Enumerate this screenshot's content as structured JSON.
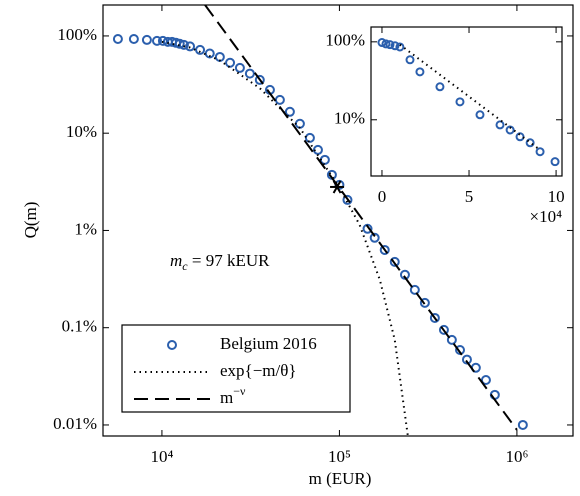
{
  "chart_data": [
    {
      "type": "scatter",
      "xlabel": "m (EUR)",
      "ylabel": "Q(m)",
      "xscale": "log",
      "yscale": "log",
      "xlim": [
        4656,
        2070000
      ],
      "ylim": [
        0.0077,
        208
      ],
      "xticks": [
        {
          "value": 10000,
          "label": "10⁴"
        },
        {
          "value": 100000,
          "label": "10⁵"
        },
        {
          "value": 1000000,
          "label": "10⁶"
        }
      ],
      "yticks": [
        {
          "value": 0.01,
          "label": "0.01%"
        },
        {
          "value": 0.1,
          "label": "0.1%"
        },
        {
          "value": 1,
          "label": "1%"
        },
        {
          "value": 10,
          "label": "10%"
        },
        {
          "value": 100,
          "label": "100%"
        }
      ],
      "legend": "lower left",
      "series": [
        {
          "name": "Belgium 2016",
          "style": "markers",
          "color": "#2b5fad",
          "x": [
            5650,
            6950,
            8230,
            9380,
            10130,
            10800,
            11400,
            12000,
            12600,
            13300,
            14400,
            16400,
            18600,
            21200,
            24200,
            27500,
            31300,
            35600,
            40600,
            46200,
            52600,
            59900,
            68200,
            75700,
            82800,
            90700,
            100000,
            111000,
            144000,
            158000,
            180000,
            205000,
            234000,
            266000,
            303000,
            345000,
            388000,
            430000,
            478000,
            523000,
            587000,
            669000,
            751000,
            1080000
          ],
          "values": [
            93,
            93,
            91,
            89,
            89,
            87,
            87,
            85,
            83,
            81,
            78,
            71.8,
            66,
            60.8,
            53,
            46.9,
            41,
            35.3,
            27.9,
            22.0,
            16.6,
            12.5,
            8.95,
            6.73,
            5.32,
            3.73,
            2.94,
            2.06,
            1.04,
            0.84,
            0.63,
            0.475,
            0.35,
            0.245,
            0.18,
            0.126,
            0.095,
            0.075,
            0.059,
            0.047,
            0.0387,
            0.029,
            0.0204,
            0.01
          ]
        },
        {
          "name": "exp{−m/θ}",
          "style": "line",
          "dash": "dotted",
          "color": "#000000",
          "x": [
            10000,
            14400,
            21200,
            35600,
            59900,
            100000,
            130000,
            169000,
            205000,
            243000
          ],
          "values": [
            87,
            76,
            56,
            29,
            11.3,
            2.75,
            1.14,
            0.31,
            0.075,
            0.0077
          ]
        },
        {
          "name": "m",
          "name_superscript": "−ν",
          "style": "line",
          "dash": "dashed",
          "color": "#000000",
          "x": [
            17500,
            1000000
          ],
          "values": [
            208,
            0.0089
          ]
        }
      ],
      "annotation": {
        "text": "m",
        "subscript": "c",
        "suffix": " = 97 kEUR",
        "x": 97000,
        "y": 2.8
      }
    },
    {
      "type": "scatter",
      "xscale": "linear",
      "yscale": "log",
      "xlim": [
        -6300,
        103400
      ],
      "ylim": [
        1.9,
        155
      ],
      "xticks": [
        {
          "value": 0,
          "label": "0"
        },
        {
          "value": 50000,
          "label": "5"
        },
        {
          "value": 100000,
          "label": "10"
        }
      ],
      "yticks": [
        {
          "value": 10,
          "label": "10%"
        },
        {
          "value": 100,
          "label": "100%"
        }
      ],
      "x_multiplier": "×10⁴",
      "series": [
        {
          "style": "markers",
          "color": "#2b5fad",
          "x": [
            0,
            2300,
            4600,
            7500,
            10300,
            16100,
            21800,
            33300,
            44800,
            56300,
            67800,
            73600,
            79300,
            85100,
            90800,
            99400
          ],
          "values": [
            98,
            94,
            92,
            89,
            86,
            58.8,
            41.2,
            26.5,
            17.0,
            11.6,
            8.6,
            7.4,
            6.05,
            5.07,
            3.89,
            2.9
          ]
        },
        {
          "style": "line",
          "dash": "dotted",
          "color": "#000000",
          "x": [
            10300,
            90800
          ],
          "values": [
            92,
            4.1
          ]
        }
      ]
    }
  ]
}
